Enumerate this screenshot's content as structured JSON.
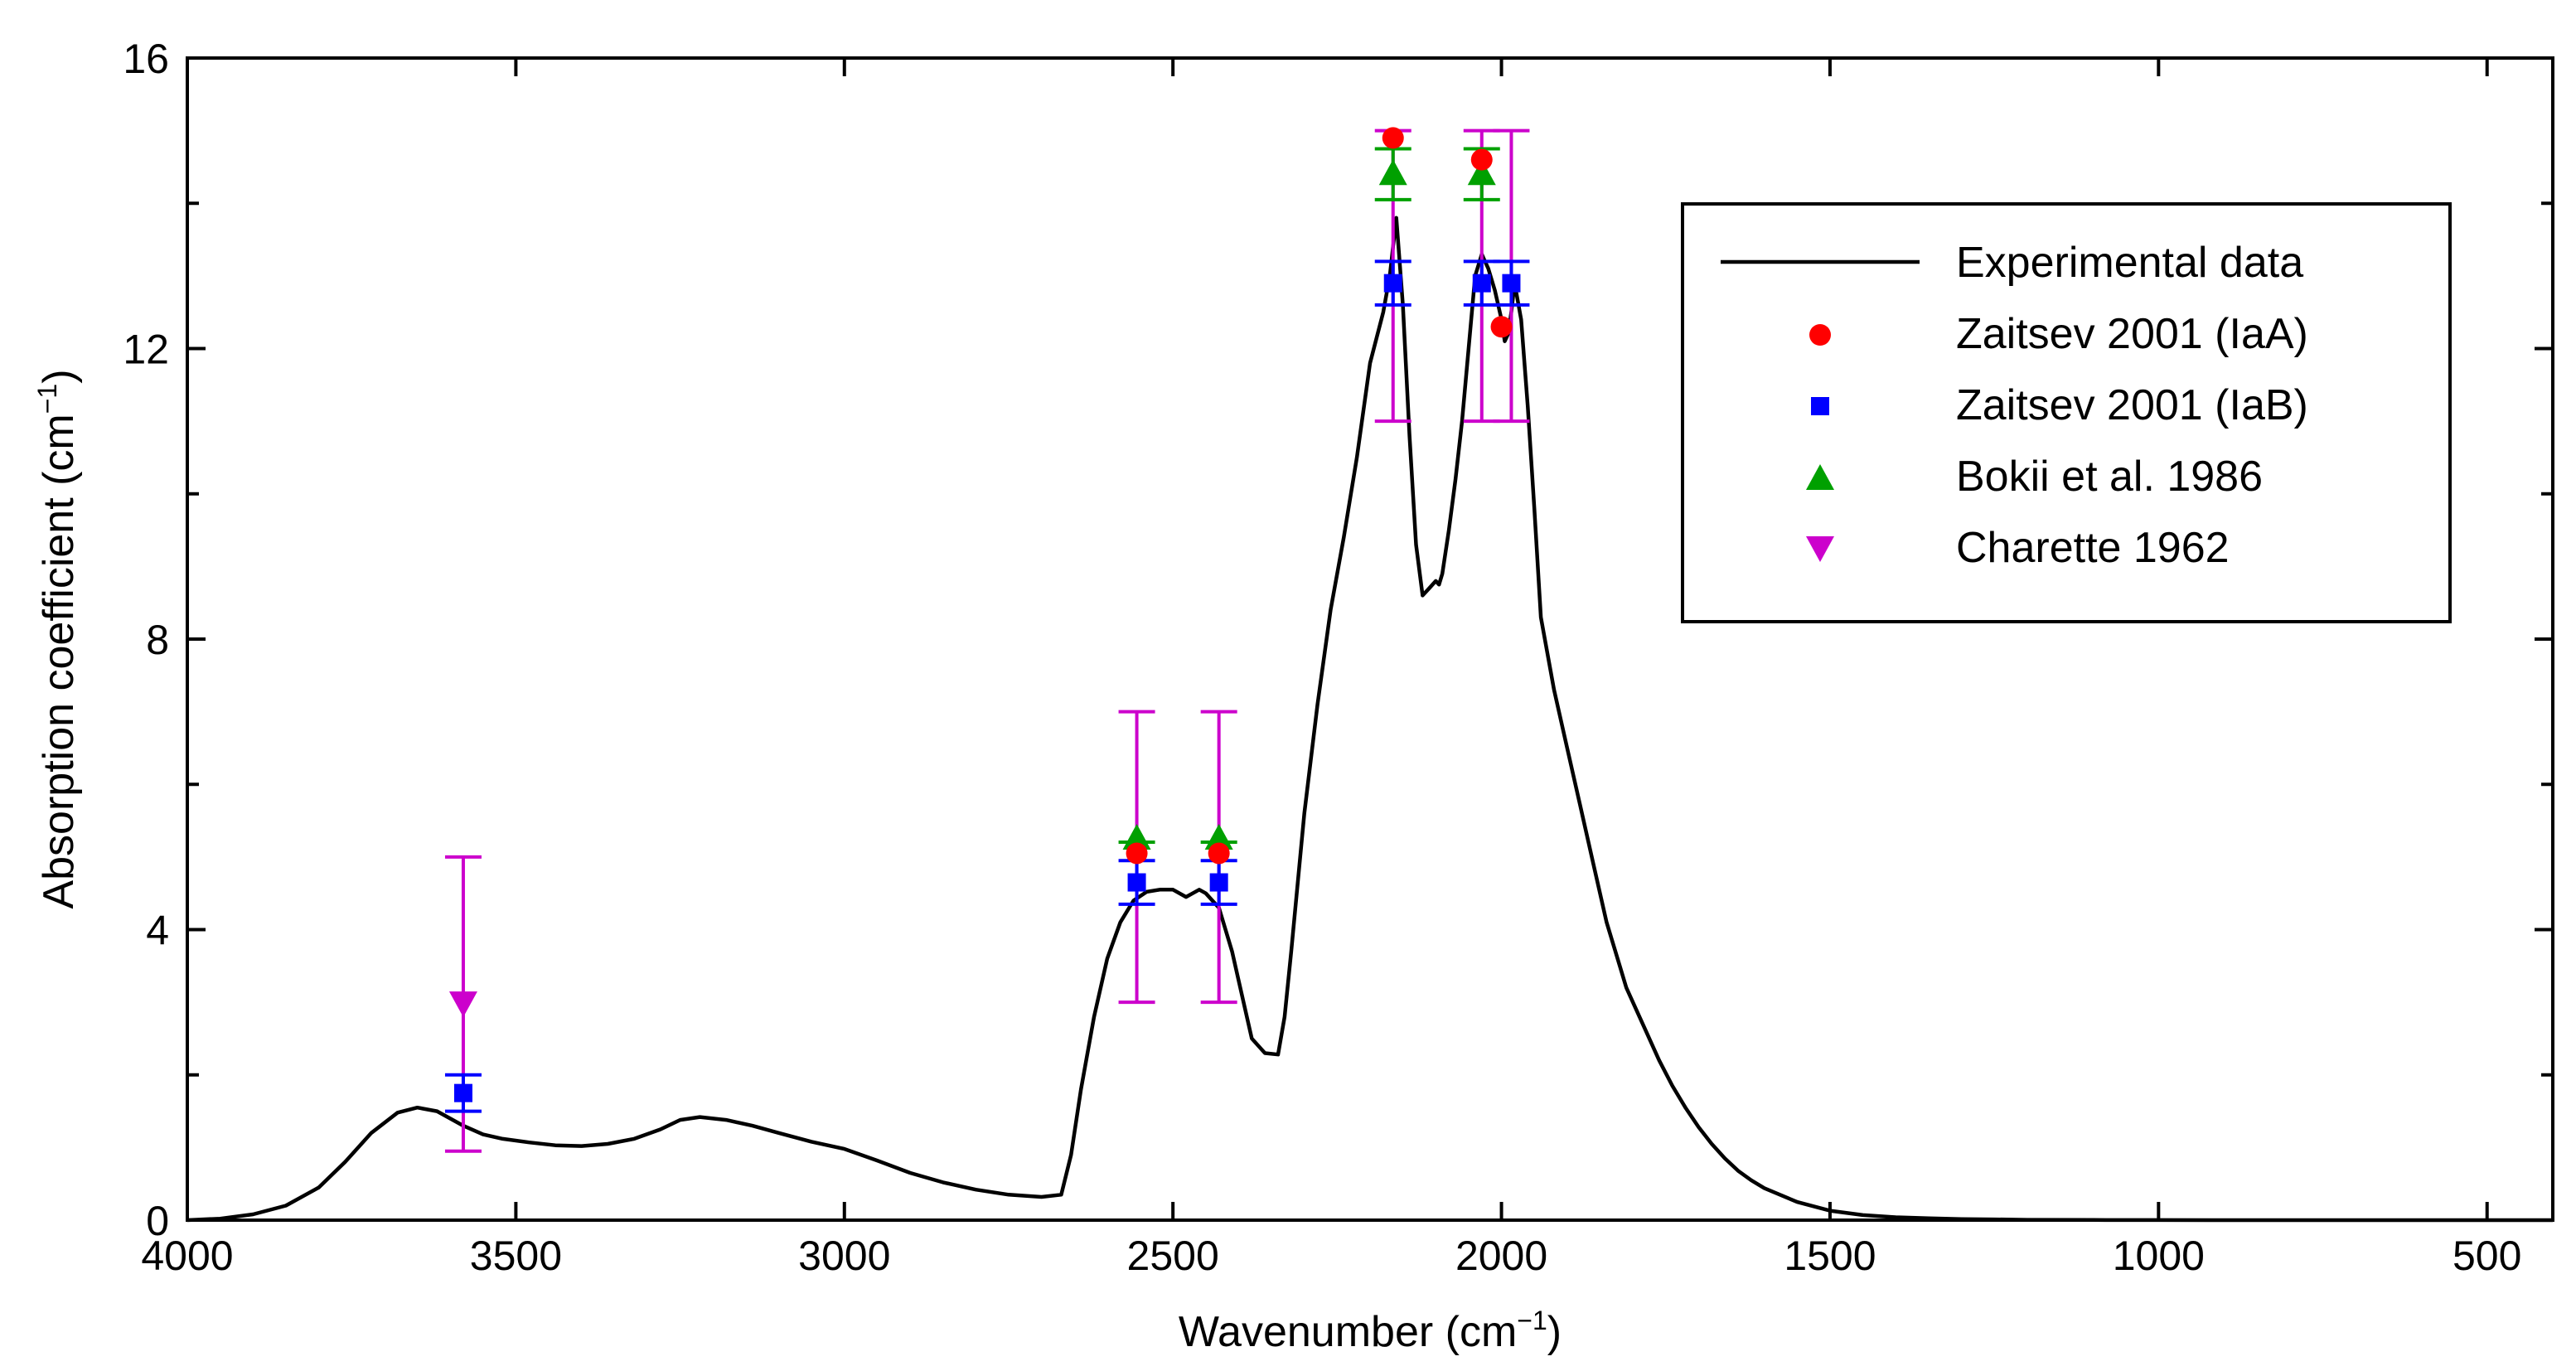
{
  "chart_data": {
    "type": "line",
    "title": "",
    "xlabel": "Wavenumber (cm",
    "xlabel_sup": "−1",
    "xlabel_end": ")",
    "ylabel": "Absorption coefficient (cm",
    "ylabel_sup": "−1",
    "ylabel_end": ")",
    "xlim": [
      4000,
      400
    ],
    "ylim": [
      0,
      16
    ],
    "x_ticks": [
      4000,
      3500,
      3000,
      2500,
      2000,
      1500,
      1000,
      500
    ],
    "x_tick_labels": [
      "4000",
      "3500",
      "3000",
      "2500",
      "2000",
      "1500",
      "1000",
      "500"
    ],
    "y_ticks": [
      0,
      4,
      8,
      12,
      16
    ],
    "y_tick_labels": [
      "0",
      "4",
      "8",
      "12",
      "16"
    ],
    "y_minor_ticks": [
      2,
      6,
      10,
      14
    ],
    "legend_position": "top-right",
    "series": [
      {
        "name": "Experimental data",
        "kind": "line",
        "color": "#000000",
        "x": [
          4000,
          3950,
          3900,
          3850,
          3800,
          3760,
          3720,
          3680,
          3650,
          3620,
          3580,
          3550,
          3520,
          3480,
          3440,
          3400,
          3360,
          3320,
          3280,
          3250,
          3220,
          3180,
          3140,
          3100,
          3050,
          3000,
          2950,
          2900,
          2850,
          2800,
          2750,
          2700,
          2670,
          2655,
          2640,
          2620,
          2600,
          2580,
          2560,
          2540,
          2520,
          2500,
          2480,
          2470,
          2460,
          2450,
          2430,
          2410,
          2400,
          2380,
          2360,
          2340,
          2330,
          2320,
          2300,
          2280,
          2260,
          2240,
          2220,
          2200,
          2180,
          2170,
          2160,
          2150,
          2140,
          2130,
          2120,
          2110,
          2100,
          2095,
          2090,
          2080,
          2070,
          2060,
          2050,
          2040,
          2030,
          2025,
          2020,
          2010,
          2000,
          1995,
          1990,
          1985,
          1980,
          1970,
          1960,
          1950,
          1940,
          1920,
          1900,
          1880,
          1860,
          1840,
          1820,
          1810,
          1800,
          1780,
          1760,
          1740,
          1720,
          1700,
          1680,
          1660,
          1640,
          1620,
          1600,
          1550,
          1500,
          1450,
          1400,
          1350,
          1300,
          1250,
          1200,
          1100,
          1000,
          900,
          800,
          700,
          600,
          500,
          400
        ],
        "y": [
          0.0,
          0.02,
          0.08,
          0.2,
          0.45,
          0.8,
          1.2,
          1.48,
          1.55,
          1.5,
          1.3,
          1.18,
          1.12,
          1.07,
          1.03,
          1.02,
          1.05,
          1.12,
          1.25,
          1.38,
          1.42,
          1.38,
          1.3,
          1.2,
          1.08,
          0.98,
          0.82,
          0.65,
          0.52,
          0.42,
          0.35,
          0.32,
          0.35,
          0.9,
          1.8,
          2.8,
          3.6,
          4.1,
          4.4,
          4.52,
          4.55,
          4.55,
          4.45,
          4.5,
          4.55,
          4.5,
          4.3,
          3.7,
          3.3,
          2.5,
          2.3,
          2.28,
          2.8,
          3.7,
          5.6,
          7.1,
          8.4,
          9.4,
          10.5,
          11.8,
          12.5,
          13.0,
          13.8,
          12.6,
          10.8,
          9.3,
          8.6,
          8.7,
          8.8,
          8.75,
          8.9,
          9.5,
          10.2,
          11.0,
          12.0,
          13.0,
          13.3,
          13.2,
          13.1,
          12.8,
          12.4,
          12.1,
          12.2,
          12.5,
          12.9,
          12.4,
          11.2,
          9.8,
          8.3,
          7.3,
          6.5,
          5.7,
          4.9,
          4.1,
          3.5,
          3.2,
          3.0,
          2.6,
          2.2,
          1.85,
          1.55,
          1.28,
          1.05,
          0.85,
          0.68,
          0.55,
          0.44,
          0.25,
          0.13,
          0.07,
          0.04,
          0.025,
          0.015,
          0.01,
          0.005,
          0.002,
          0.001,
          0.0005,
          0.0003,
          0.0002,
          0.0001,
          0.0,
          0.0
        ]
      },
      {
        "name": "Zaitsev 2001 (IaA)",
        "kind": "scatter",
        "marker": "circle",
        "color": "#ff0000",
        "x": [
          2555,
          2430,
          2165,
          2030,
          2000
        ],
        "y": [
          5.05,
          5.05,
          14.9,
          14.6,
          12.3
        ],
        "err": [
          0,
          0,
          0,
          0,
          0
        ]
      },
      {
        "name": "Zaitsev 2001 (IaB)",
        "kind": "scatter",
        "marker": "square",
        "color": "#0000ff",
        "x": [
          3580,
          2555,
          2430,
          2165,
          2030,
          1985
        ],
        "y": [
          1.75,
          4.65,
          4.65,
          12.9,
          12.9,
          12.9
        ],
        "err": [
          0.25,
          0.3,
          0.3,
          0.3,
          0.3,
          0.3
        ]
      },
      {
        "name": "Bokii et al. 1986",
        "kind": "scatter",
        "marker": "triangle-up",
        "color": "#00a000",
        "x": [
          2555,
          2430,
          2165,
          2030
        ],
        "y": [
          5.25,
          5.25,
          14.4,
          14.4
        ],
        "err": [
          0.0,
          0.0,
          0.35,
          0.35
        ]
      },
      {
        "name": "Charette 1962",
        "kind": "scatter",
        "marker": "triangle-down",
        "color": "#cc00cc",
        "x": [
          3580,
          2555,
          2430,
          2165,
          2030,
          1985
        ],
        "y": [
          3.0,
          5.0,
          5.0,
          13.0,
          13.0,
          13.0
        ],
        "err_low": [
          2.05,
          2.0,
          2.0,
          2.0,
          2.0,
          2.0
        ],
        "err_high": [
          2.0,
          2.0,
          2.0,
          2.0,
          2.0,
          2.0
        ],
        "show_marker": [
          true,
          false,
          false,
          false,
          false,
          false
        ]
      }
    ]
  }
}
